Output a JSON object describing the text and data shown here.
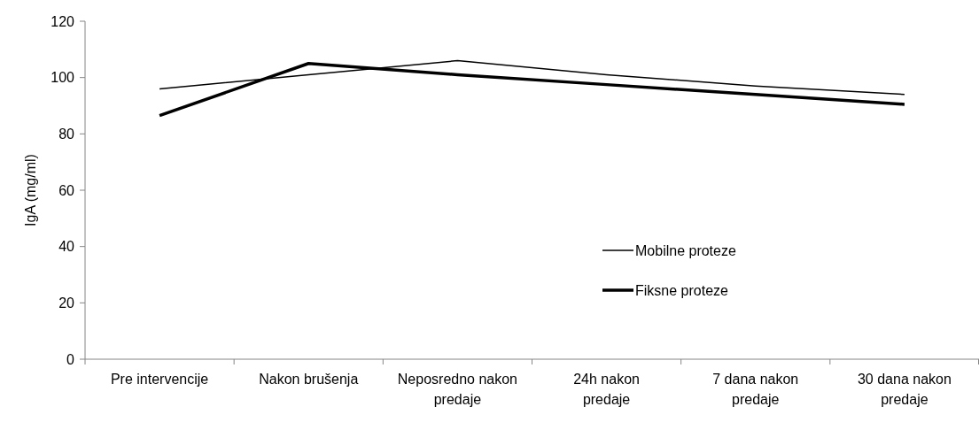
{
  "chart_data": {
    "type": "line",
    "ylabel": "IgA (mg/ml)",
    "categories": [
      "Pre intervencije",
      "Nakon brušenja",
      "Neposredno nakon predaje",
      "24h nakon predaje",
      "7 dana nakon predaje",
      "30 dana nakon predaje"
    ],
    "series": [
      {
        "name": "Mobilne proteze",
        "color": "#000000",
        "values": [
          96,
          101,
          106,
          101,
          97,
          94
        ]
      },
      {
        "name": "Fiksne proteze",
        "color": "#000000",
        "values": [
          86.5,
          105,
          101,
          97.5,
          94,
          90.5
        ]
      }
    ],
    "ylim": [
      0,
      120
    ],
    "yticks": [
      0,
      20,
      40,
      60,
      80,
      100,
      120
    ],
    "grid": false,
    "legend": "right",
    "marker": "none",
    "line_style": "solid"
  }
}
